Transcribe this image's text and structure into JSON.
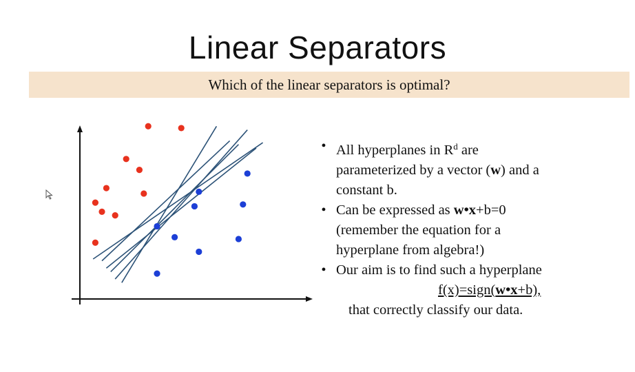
{
  "slide": {
    "title": "Linear Separators",
    "subtitle": "Which of the linear separators is optimal?"
  },
  "colors": {
    "red_class": "#e8321e",
    "blue_class": "#1c3fd6",
    "separator": "#2c5277",
    "subtitle_bg": "#f6e3cc"
  },
  "icons": {
    "cursor": "mouse-pointer-icon"
  },
  "bullets": [
    {
      "lines": [
        [
          {
            "t": "All hyperplanes in R"
          },
          {
            "t": "d",
            "sup": true
          },
          {
            "t": " are"
          }
        ],
        [
          {
            "t": "parameterized by a vector ("
          },
          {
            "t": "w",
            "b": true
          },
          {
            "t": ") and a"
          }
        ],
        [
          {
            "t": "constant b."
          }
        ]
      ]
    },
    {
      "lines": [
        [
          {
            "t": "Can be expressed as "
          },
          {
            "t": "w•x",
            "b": true
          },
          {
            "t": "+b=0"
          }
        ],
        [
          {
            "t": "(remember the equation for a"
          }
        ],
        [
          {
            "t": "hyperplane   from algebra!)"
          }
        ]
      ]
    },
    {
      "lines": [
        [
          {
            "t": "Our aim is to find such a hyperplane"
          }
        ]
      ],
      "formula": [
        {
          "t": "f(x)=sign("
        },
        {
          "t": "w•x",
          "b": true
        },
        {
          "t": "+b),"
        }
      ],
      "tail": "that   correctly classify our data."
    }
  ],
  "diagram_data": {
    "red_points": [
      [
        0.31,
        0.02
      ],
      [
        0.46,
        0.03
      ],
      [
        0.21,
        0.2
      ],
      [
        0.27,
        0.26
      ],
      [
        0.12,
        0.36
      ],
      [
        0.29,
        0.39
      ],
      [
        0.07,
        0.44
      ],
      [
        0.1,
        0.49
      ],
      [
        0.16,
        0.51
      ],
      [
        0.07,
        0.66
      ]
    ],
    "blue_points": [
      [
        0.76,
        0.28
      ],
      [
        0.54,
        0.38
      ],
      [
        0.74,
        0.45
      ],
      [
        0.52,
        0.46
      ],
      [
        0.35,
        0.57
      ],
      [
        0.43,
        0.63
      ],
      [
        0.72,
        0.64
      ],
      [
        0.54,
        0.71
      ],
      [
        0.35,
        0.83
      ]
    ],
    "separators": [
      [
        [
          0.1,
          0.76
        ],
        [
          0.68,
          0.1
        ]
      ],
      [
        [
          0.14,
          0.82
        ],
        [
          0.72,
          0.12
        ]
      ],
      [
        [
          0.06,
          0.75
        ],
        [
          0.83,
          0.11
        ]
      ],
      [
        [
          0.16,
          0.86
        ],
        [
          0.76,
          0.04
        ]
      ],
      [
        [
          0.19,
          0.88
        ],
        [
          0.62,
          0.02
        ]
      ],
      [
        [
          0.12,
          0.8
        ],
        [
          0.8,
          0.14
        ]
      ]
    ]
  }
}
